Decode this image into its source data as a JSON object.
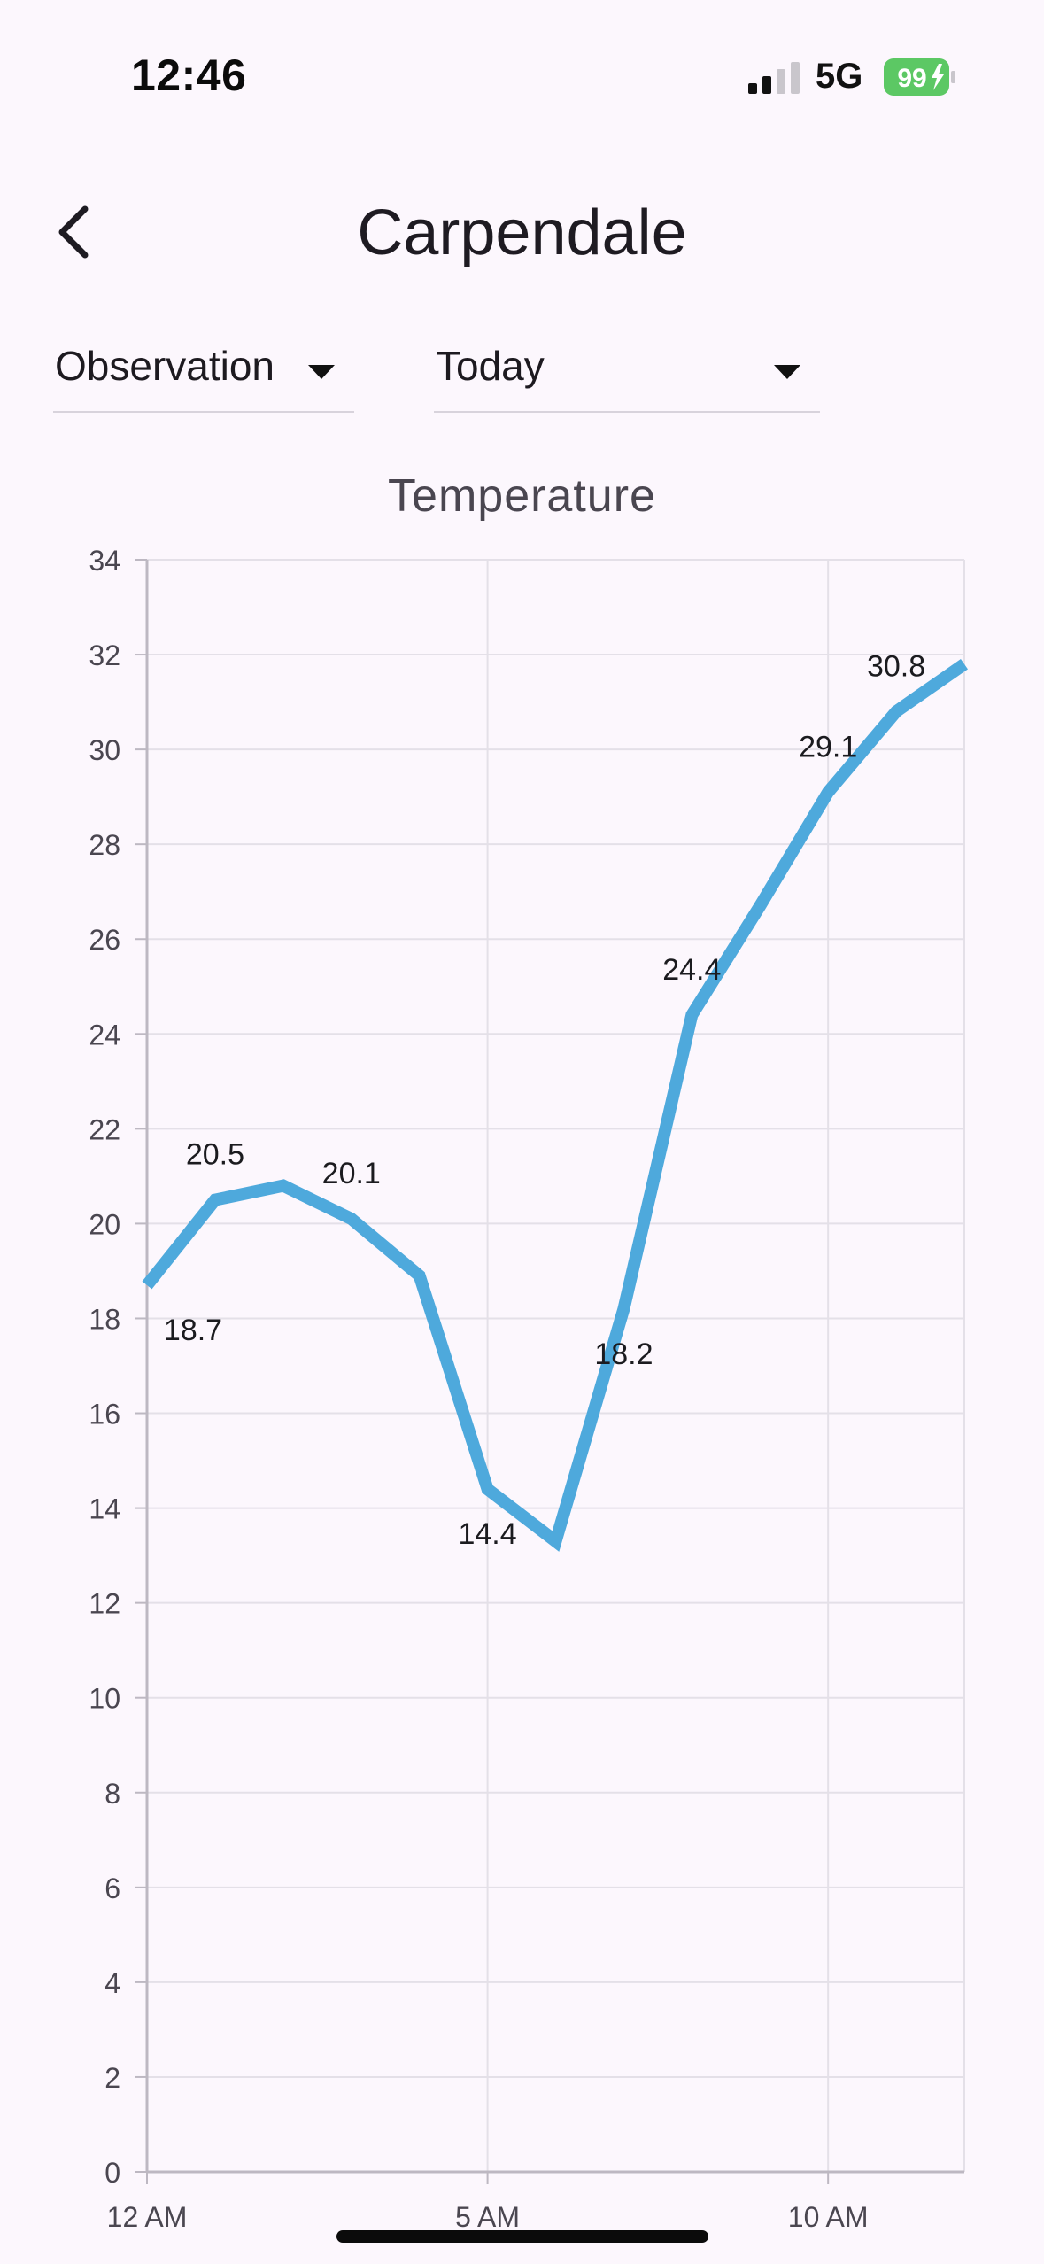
{
  "status_bar": {
    "time": "12:46",
    "network": "5G",
    "battery_level": "99",
    "battery_color": "#5cc864",
    "signal_bars_active": 2,
    "signal_bars_total": 4
  },
  "header": {
    "title": "Carpendale",
    "back_icon": "chevron-left-icon"
  },
  "filters": {
    "observation_label": "Observation",
    "period_label": "Today"
  },
  "chart_data": {
    "type": "line",
    "title": "Temperature",
    "xlabel": "",
    "ylabel": "",
    "ylim": [
      0,
      34
    ],
    "yticks": [
      0,
      2,
      4,
      6,
      8,
      10,
      12,
      14,
      16,
      18,
      20,
      22,
      24,
      26,
      28,
      30,
      32,
      34
    ],
    "xlim": [
      0,
      12
    ],
    "xticks": [
      {
        "x": 0,
        "label": "12 AM"
      },
      {
        "x": 5,
        "label": "5 AM"
      },
      {
        "x": 10,
        "label": "10 AM"
      }
    ],
    "grid": true,
    "line_color": "#4ea9dc",
    "series": [
      {
        "x": [
          0,
          1,
          2,
          3,
          4,
          5,
          6,
          7,
          8,
          9,
          10,
          11,
          12
        ],
        "values": [
          18.7,
          20.5,
          20.8,
          20.1,
          18.9,
          14.4,
          13.3,
          18.2,
          24.4,
          26.7,
          29.1,
          30.8,
          31.8
        ],
        "labels": [
          {
            "index": 0,
            "text": "18.7",
            "pos": "below"
          },
          {
            "index": 1,
            "text": "20.5",
            "pos": "above"
          },
          {
            "index": 3,
            "text": "20.1",
            "pos": "above"
          },
          {
            "index": 5,
            "text": "14.4",
            "pos": "below"
          },
          {
            "index": 7,
            "text": "18.2",
            "pos": "below"
          },
          {
            "index": 8,
            "text": "24.4",
            "pos": "above"
          },
          {
            "index": 10,
            "text": "29.1",
            "pos": "above"
          },
          {
            "index": 11,
            "text": "30.8",
            "pos": "above"
          }
        ]
      }
    ]
  }
}
